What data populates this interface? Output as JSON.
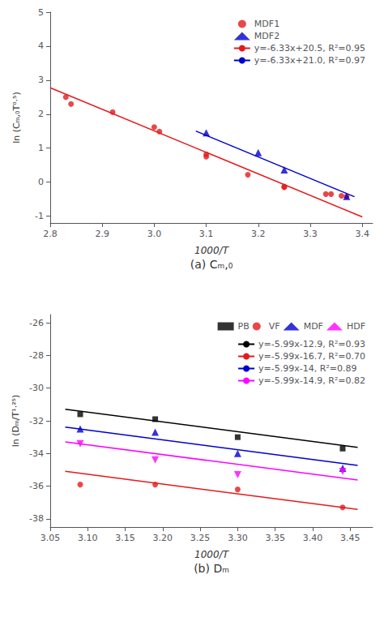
{
  "chart_data": [
    {
      "type": "scatter",
      "title": "(a) Cₘ,₀",
      "x_label": "1000/T",
      "y_label": "ln (Cₘ,₀T⁰·⁵)",
      "xlim": [
        2.8,
        3.42
      ],
      "ylim": [
        -1.2,
        5.0
      ],
      "xticks": [
        2.8,
        2.9,
        {
          "value": 3.0,
          "label": "3.0"
        },
        3.1,
        3.2,
        3.3,
        3.4
      ],
      "yticks": [
        -1,
        0,
        1,
        2,
        3,
        4,
        5
      ],
      "grid": false,
      "legend": "upper right",
      "series": [
        {
          "name": "MDF1",
          "type": "scatter",
          "marker": "circle",
          "color": "#e41a1c",
          "x": [
            2.83,
            2.84,
            2.92,
            3.0,
            3.01,
            3.1,
            3.1,
            3.18,
            3.25,
            3.25,
            3.33,
            3.34,
            3.36,
            3.37
          ],
          "values": [
            2.5,
            2.3,
            2.06,
            1.62,
            1.49,
            0.82,
            0.75,
            0.22,
            -0.13,
            -0.15,
            -0.35,
            -0.35,
            -0.4,
            -0.42
          ]
        },
        {
          "name": "MDF2",
          "type": "scatter",
          "marker": "triangle",
          "color": "#0000cd",
          "x": [
            3.1,
            3.2,
            3.25,
            3.37
          ],
          "values": [
            1.45,
            0.87,
            0.36,
            -0.42
          ]
        },
        {
          "name": "y=-6.33x+20.5, R²=0.95",
          "type": "line",
          "line_style": "solid",
          "color": "#e41a1c",
          "x": [
            2.8,
            3.4
          ],
          "values": [
            2.776,
            -1.022
          ]
        },
        {
          "name": "y=-6.33x+21.0, R²=0.97",
          "type": "line",
          "line_style": "solid",
          "color": "#0000cd",
          "x": [
            3.08,
            3.385
          ],
          "values": [
            1.5036,
            -0.42705
          ]
        }
      ]
    },
    {
      "type": "scatter",
      "title": "(b) Dₘ",
      "x_label": "1000/T",
      "y_label": "ln (Dₘ/T¹·²⁵)",
      "xlim": [
        3.05,
        3.48
      ],
      "ylim": [
        -38.5,
        -25.5
      ],
      "xticks": [
        3.05,
        {
          "value": 3.1,
          "label": "3.10"
        },
        3.15,
        {
          "value": 3.2,
          "label": "3.20"
        },
        3.25,
        {
          "value": 3.3,
          "label": "3.30"
        },
        3.35,
        {
          "value": 3.4,
          "label": "3.40"
        },
        3.45
      ],
      "yticks": [
        -38,
        -36,
        -34,
        -32,
        -30,
        -28,
        -26
      ],
      "grid": false,
      "legend": "upper right",
      "series": [
        {
          "name": "PB",
          "type": "scatter",
          "marker": "square",
          "color": "#000000",
          "x": [
            3.09,
            3.19,
            3.3,
            3.44
          ],
          "values": [
            -31.6,
            -31.9,
            -33.0,
            -33.7
          ]
        },
        {
          "name": "VF",
          "type": "scatter",
          "marker": "circle",
          "color": "#e41a1c",
          "x": [
            3.09,
            3.19,
            3.3,
            3.44
          ],
          "values": [
            -35.9,
            -35.9,
            -36.2,
            -37.3
          ]
        },
        {
          "name": "MDF",
          "type": "scatter",
          "marker": "triangle",
          "color": "#0000cd",
          "x": [
            3.09,
            3.19,
            3.3,
            3.44
          ],
          "values": [
            -32.5,
            -32.7,
            -34.0,
            -34.9
          ]
        },
        {
          "name": "HDF",
          "type": "scatter",
          "marker": "triangle_down",
          "color": "#ff00ff",
          "x": [
            3.09,
            3.19,
            3.3,
            3.44
          ],
          "values": [
            -33.4,
            -34.4,
            -35.3,
            -35.1
          ]
        },
        {
          "name": "y=-5.99x-12.9, R²=0.93",
          "type": "line",
          "line_style": "solid",
          "color": "#000000",
          "x": [
            3.07,
            3.46
          ],
          "values": [
            -31.2893,
            -33.6254
          ]
        },
        {
          "name": "y=-5.99x-16.7, R²=0.70",
          "type": "line",
          "line_style": "solid",
          "color": "#e41a1c",
          "x": [
            3.07,
            3.46
          ],
          "values": [
            -35.0893,
            -37.4254
          ]
        },
        {
          "name": "y=-5.99x-14, R²=0.89",
          "type": "line",
          "line_style": "solid",
          "color": "#0000cd",
          "x": [
            3.07,
            3.46
          ],
          "values": [
            -32.3893,
            -34.7254
          ]
        },
        {
          "name": "y=-5.99x-14.9, R²=0.82",
          "type": "line",
          "line_style": "solid",
          "color": "#ff00ff",
          "x": [
            3.07,
            3.46
          ],
          "values": [
            -33.2893,
            -35.6254
          ]
        }
      ]
    }
  ]
}
